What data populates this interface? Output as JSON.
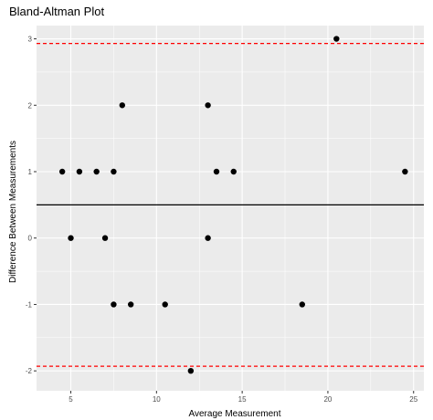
{
  "chart_data": {
    "type": "scatter",
    "title": "Bland-Altman Plot",
    "xlabel": "Average Measurement",
    "ylabel": "Difference Between Measurements",
    "xlim": [
      3.0,
      25.6
    ],
    "ylim": [
      -2.3,
      3.2
    ],
    "xticks": [
      5,
      10,
      15,
      20,
      25
    ],
    "xtick_labels": [
      "5",
      "10",
      "15",
      "20",
      "25"
    ],
    "yticks": [
      -2,
      -1,
      0,
      1,
      2,
      3
    ],
    "ytick_labels": [
      "-2",
      "-1",
      "0",
      "1",
      "2",
      "3"
    ],
    "grid": true,
    "points": [
      {
        "x": 4.5,
        "y": 1
      },
      {
        "x": 5.0,
        "y": 0
      },
      {
        "x": 5.5,
        "y": 1
      },
      {
        "x": 6.5,
        "y": 1
      },
      {
        "x": 7.0,
        "y": 0
      },
      {
        "x": 7.5,
        "y": 1
      },
      {
        "x": 7.5,
        "y": -1
      },
      {
        "x": 8.0,
        "y": 2
      },
      {
        "x": 8.5,
        "y": -1
      },
      {
        "x": 10.5,
        "y": -1
      },
      {
        "x": 12.0,
        "y": -2
      },
      {
        "x": 13.0,
        "y": 2
      },
      {
        "x": 13.0,
        "y": 0
      },
      {
        "x": 13.5,
        "y": 1
      },
      {
        "x": 14.5,
        "y": 1
      },
      {
        "x": 18.5,
        "y": -1
      },
      {
        "x": 20.5,
        "y": 3
      },
      {
        "x": 24.5,
        "y": 1
      }
    ],
    "reference_lines": [
      {
        "name": "mean-difference",
        "y": 0.5,
        "color": "#000000",
        "style": "solid"
      },
      {
        "name": "upper-limit-of-agreement",
        "y": 2.93,
        "color": "#ff0000",
        "style": "dashed"
      },
      {
        "name": "lower-limit-of-agreement",
        "y": -1.93,
        "color": "#ff0000",
        "style": "dashed"
      }
    ],
    "colors": {
      "panel_background": "#ebebeb",
      "grid_major": "#ffffff",
      "points": "#000000"
    }
  }
}
